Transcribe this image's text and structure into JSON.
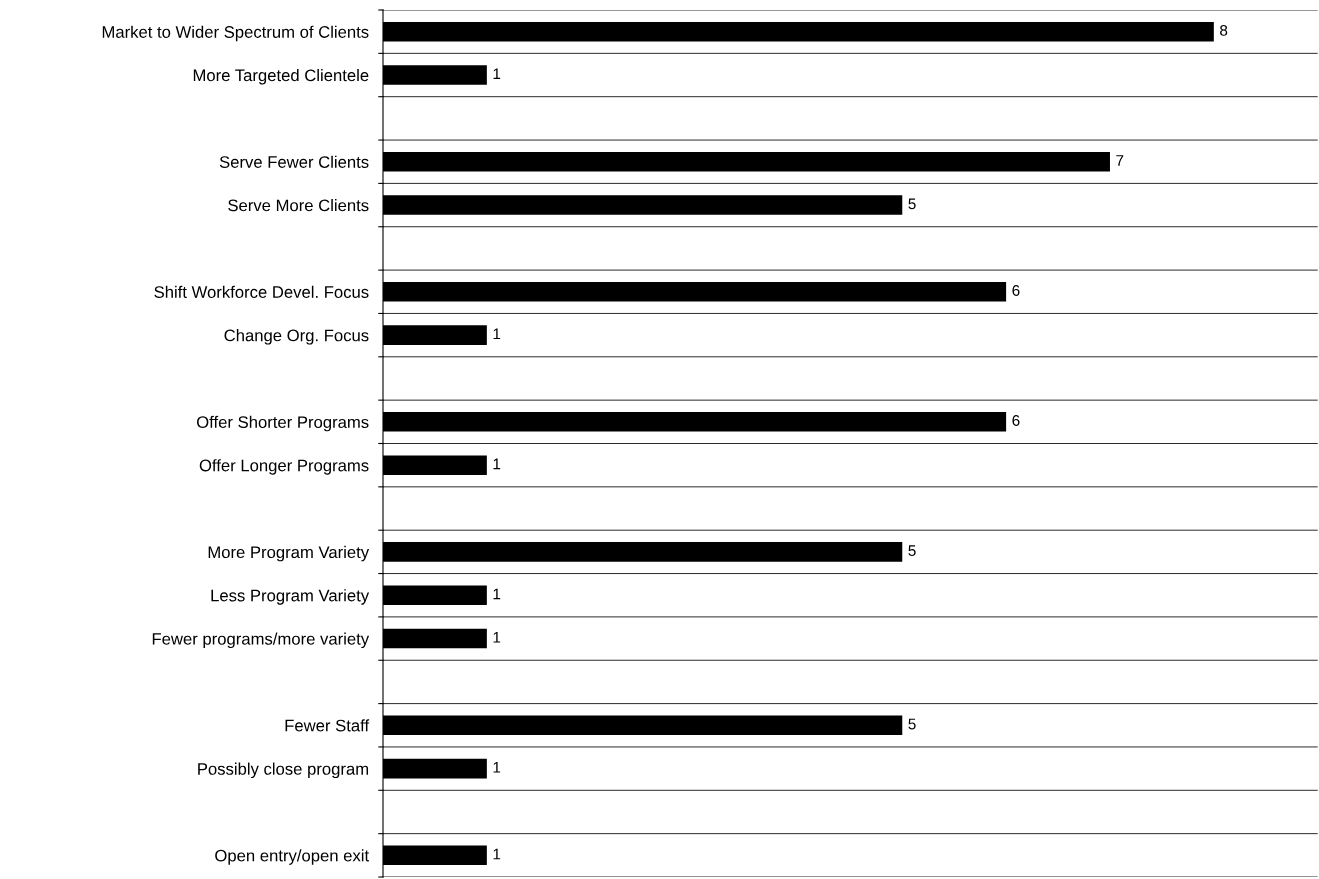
{
  "chart_data": {
    "type": "bar",
    "orientation": "horizontal",
    "categories": [
      "Market to Wider Spectrum of Clients",
      "More Targeted Clientele",
      null,
      "Serve Fewer Clients",
      "Serve More Clients",
      null,
      "Shift Workforce Devel. Focus",
      "Change Org. Focus",
      null,
      "Offer Shorter Programs",
      "Offer Longer Programs",
      null,
      "More Program Variety",
      "Less Program Variety",
      "Fewer programs/more variety",
      null,
      "Fewer Staff",
      "Possibly close program",
      null,
      "Open entry/open exit"
    ],
    "values": [
      8,
      1,
      null,
      7,
      5,
      null,
      6,
      1,
      null,
      6,
      1,
      null,
      5,
      1,
      1,
      null,
      5,
      1,
      null,
      1
    ],
    "color": "#000000",
    "xlim": [
      0,
      9
    ],
    "data_labels": true,
    "grid": "y",
    "tick_labels": "y",
    "legend": false
  }
}
